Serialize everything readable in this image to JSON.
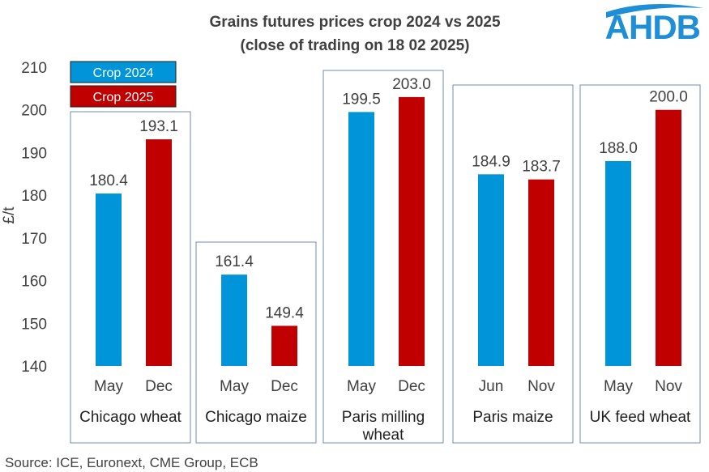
{
  "chart_data": {
    "type": "bar",
    "title": [
      "Grains futures prices crop 2024 vs 2025",
      "(close of trading on 18 02 2025)"
    ],
    "ylabel": "£/t",
    "ylim": [
      140,
      210
    ],
    "yticks": [
      140,
      150,
      160,
      170,
      180,
      190,
      200,
      210
    ],
    "grid": false,
    "legend": {
      "placement": "top-left",
      "items": [
        {
          "name": "Crop 2024",
          "color": "#0094D8"
        },
        {
          "name": "Crop 2025",
          "color": "#C00000"
        }
      ]
    },
    "groups": [
      {
        "name": [
          "Chicago wheat"
        ],
        "bars": [
          {
            "category": "May",
            "series": "Crop 2024",
            "value": 180.4
          },
          {
            "category": "Dec",
            "series": "Crop 2025",
            "value": 193.1
          }
        ]
      },
      {
        "name": [
          "Chicago maize"
        ],
        "bars": [
          {
            "category": "May",
            "series": "Crop 2024",
            "value": 161.4
          },
          {
            "category": "Dec",
            "series": "Crop 2025",
            "value": 149.4
          }
        ]
      },
      {
        "name": [
          "Paris milling",
          "wheat"
        ],
        "bars": [
          {
            "category": "May",
            "series": "Crop 2024",
            "value": 199.5
          },
          {
            "category": "Dec",
            "series": "Crop 2025",
            "value": 203.0
          }
        ]
      },
      {
        "name": [
          "Paris maize"
        ],
        "bars": [
          {
            "category": "Jun",
            "series": "Crop 2024",
            "value": 184.9
          },
          {
            "category": "Nov",
            "series": "Crop 2025",
            "value": 183.7
          }
        ]
      },
      {
        "name": [
          "UK feed wheat"
        ],
        "bars": [
          {
            "category": "May",
            "series": "Crop 2024",
            "value": 188.0
          },
          {
            "category": "Nov",
            "series": "Crop 2025",
            "value": 200.0
          }
        ]
      }
    ],
    "source": "Source: ICE, Euronext, CME Group, ECB"
  },
  "logo": {
    "text": "AHDB",
    "color": "#1E8ED6"
  },
  "frame_color": "#6E8EA8"
}
